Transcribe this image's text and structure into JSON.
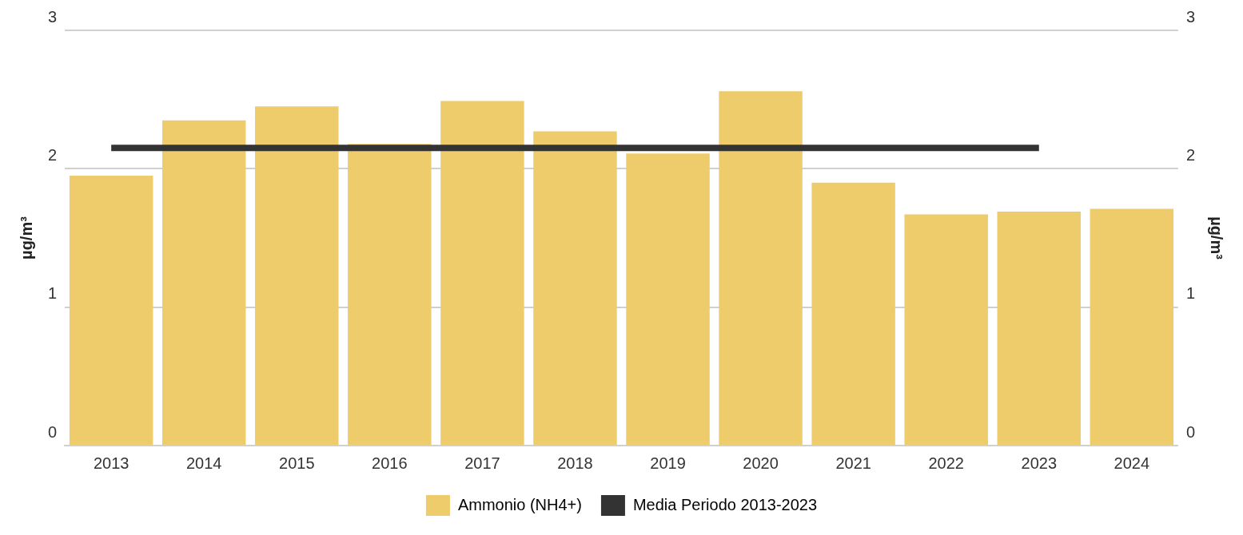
{
  "chart_data": {
    "type": "bar",
    "ylabel": "µg/m³",
    "y2label": "µg/m³",
    "categories": [
      "2013",
      "2014",
      "2015",
      "2016",
      "2017",
      "2018",
      "2019",
      "2020",
      "2021",
      "2022",
      "2023",
      "2024"
    ],
    "series": [
      {
        "name": "Ammonio (NH4+)",
        "color": "#eecb6b",
        "values": [
          1.95,
          2.35,
          2.45,
          2.18,
          2.49,
          2.27,
          2.11,
          2.56,
          1.9,
          1.67,
          1.69,
          1.71
        ]
      },
      {
        "name": "Media Periodo 2013-2023",
        "type": "line",
        "color": "#333333",
        "values": [
          2.15,
          2.15,
          2.15,
          2.15,
          2.15,
          2.15,
          2.15,
          2.15,
          2.15,
          2.15,
          2.15,
          null
        ]
      }
    ],
    "ylim": [
      0,
      3
    ],
    "yticks": [
      0,
      1,
      2,
      3
    ],
    "y2lim": [
      0,
      3
    ],
    "y2ticks": [
      0,
      1,
      2,
      3
    ],
    "grid": "y",
    "legend": "bottom",
    "marker": "none",
    "line_style": "solid"
  }
}
